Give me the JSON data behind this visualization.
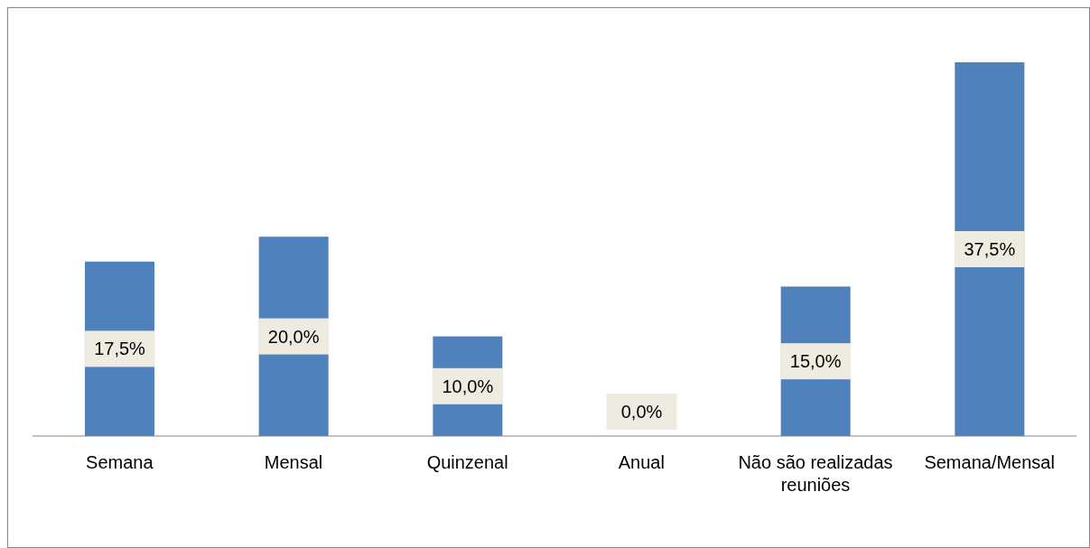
{
  "chart_data": {
    "type": "bar",
    "categories": [
      "Semana",
      "Mensal",
      "Quinzenal",
      "Anual",
      "Não são realizadas reuniões",
      "Semana/Mensal"
    ],
    "values": [
      17.5,
      20.0,
      10.0,
      0.0,
      15.0,
      37.5
    ],
    "value_labels": [
      "17,5%",
      "20,0%",
      "10,0%",
      "0,0%",
      "15,0%",
      "37,5%"
    ],
    "color": "#4f81bd",
    "grid": false,
    "legend": false
  }
}
